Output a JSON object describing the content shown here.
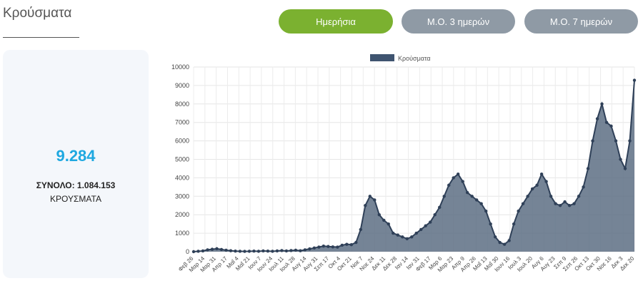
{
  "page": {
    "title": "Κρούσματα"
  },
  "tabs": [
    {
      "label": "Ημερήσια",
      "active": true
    },
    {
      "label": "Μ.Ο. 3 ημερών",
      "active": false
    },
    {
      "label": "Μ.Ο. 7 ημερών",
      "active": false
    }
  ],
  "stat_card": {
    "value": "9.284",
    "total": "ΣΥΝΟΛΟ: 1.084.153",
    "unit": "ΚΡΟΥΣΜΑΤΑ"
  },
  "colors": {
    "accent": "#7bb130",
    "inactive_tab": "#8f9aa5",
    "highlight": "#1ea8e0",
    "series": "#3f5470"
  },
  "chart_data": {
    "type": "area",
    "legend": {
      "label": "Κρούσματα",
      "position": "top"
    },
    "ylim": [
      0,
      10000
    ],
    "yticks": [
      "0",
      "1000",
      "2000",
      "3000",
      "4000",
      "5000",
      "6000",
      "7000",
      "8000",
      "9000",
      "10000"
    ],
    "xticks": [
      "Φεβ 26",
      "Μαρ 14",
      "Μαρ 31",
      "Απρ 17",
      "Μαΐ 4",
      "Μαΐ 21",
      "Ιουν 7",
      "Ιουν 24",
      "Ιουλ 11",
      "Ιουλ 28",
      "Αυγ 14",
      "Αυγ 31",
      "Σεπ 17",
      "Οκτ 4",
      "Οκτ 21",
      "Νοε 7",
      "Νοε 24",
      "Δεκ 11",
      "Δεκ 28",
      "Ιαν 14",
      "Ιαν 31",
      "Φεβ 17",
      "Μαρ 6",
      "Μαρ 23",
      "Απρ 9",
      "Απρ 26",
      "Μαΐ 13",
      "Μαΐ 30",
      "Ιουν 16",
      "Ιουλ 3",
      "Ιουλ 20",
      "Αυγ 6",
      "Αυγ 23",
      "Σεπ 9",
      "Σεπ 26",
      "Οκτ 13",
      "Οκτ 30",
      "Νοε 16",
      "Δεκ 3",
      "Δεκ 20"
    ],
    "grid": true,
    "series": [
      {
        "name": "Κρούσματα",
        "values": [
          0,
          20,
          40,
          100,
          130,
          160,
          120,
          80,
          50,
          30,
          20,
          15,
          20,
          30,
          20,
          40,
          30,
          20,
          40,
          60,
          40,
          60,
          80,
          50,
          100,
          150,
          200,
          250,
          300,
          280,
          260,
          250,
          350,
          400,
          380,
          500,
          1200,
          2500,
          3000,
          2800,
          2000,
          1700,
          1500,
          1000,
          900,
          800,
          700,
          800,
          1000,
          1200,
          1400,
          1600,
          2000,
          2400,
          3000,
          3600,
          4000,
          4200,
          3800,
          3200,
          3000,
          2800,
          2600,
          2200,
          1500,
          800,
          500,
          400,
          600,
          1500,
          2200,
          2600,
          3000,
          3400,
          3600,
          4200,
          3800,
          3000,
          2600,
          2500,
          2700,
          2500,
          2600,
          3000,
          3500,
          4500,
          6000,
          7200,
          8000,
          7000,
          6800,
          6000,
          5000,
          4500,
          6000,
          9284
        ]
      }
    ]
  }
}
